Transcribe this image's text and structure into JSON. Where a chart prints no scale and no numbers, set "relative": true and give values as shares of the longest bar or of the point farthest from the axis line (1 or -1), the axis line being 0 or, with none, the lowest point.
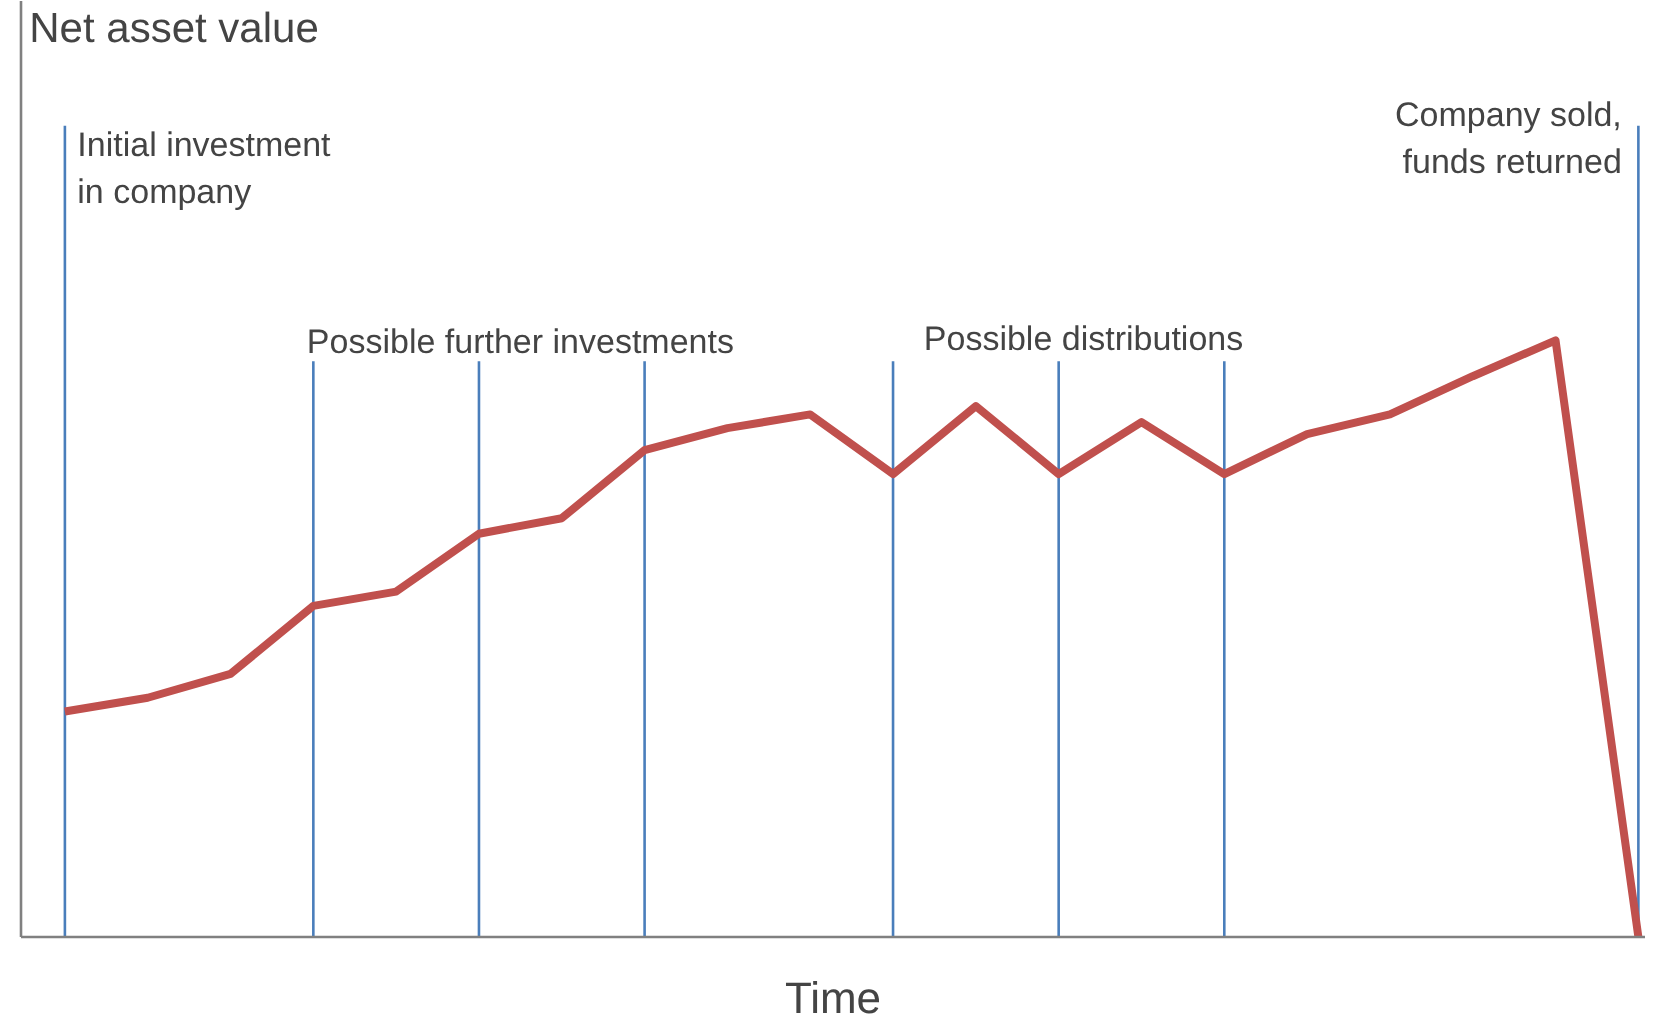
{
  "chart_data": {
    "type": "line",
    "relative": true,
    "xlabel": "Time",
    "categories": [
      null,
      null,
      null,
      null,
      null,
      null,
      null,
      null,
      null,
      null,
      null,
      null,
      null,
      null,
      null,
      null,
      null,
      null,
      null,
      null
    ],
    "series": [
      {
        "color": "#c0504d",
        "values": [
          0.378,
          0.401,
          0.441,
          0.555,
          0.579,
          0.676,
          0.702,
          0.816,
          0.853,
          0.876,
          0.776,
          0.89,
          0.776,
          0.863,
          0.776,
          0.843,
          0.876,
          0.94,
          1,
          0
        ]
      }
    ],
    "annotations": [
      "Net asset value",
      "Initial investment\nin company",
      "Possible further investments",
      "Possible distributions",
      "Company sold,\nfunds returned"
    ],
    "line_style": "solid",
    "marker": "none",
    "grid": "x"
  }
}
